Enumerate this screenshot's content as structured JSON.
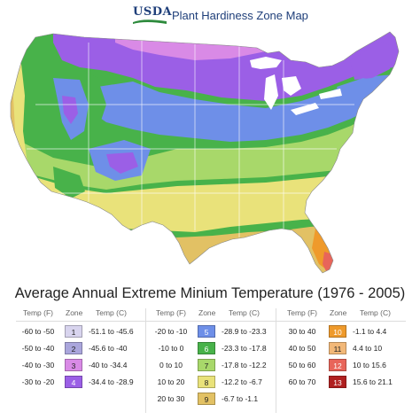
{
  "header": {
    "agency": "USDA",
    "title": "Plant Hardiness Zone Map"
  },
  "legend": {
    "title": "Average Annual Extreme Minium Temperature (1976 - 2005)",
    "head_temp_f": "Temp (F)",
    "head_zone": "Zone",
    "head_temp_c": "Temp (C)",
    "zones": [
      {
        "temp_f": "-60 to -50",
        "zone": "1",
        "temp_c": "-51.1 to -45.6",
        "color": "#d8d4ee"
      },
      {
        "temp_f": "-50 to -40",
        "zone": "2",
        "temp_c": "-45.6 to -40",
        "color": "#aaa6dc"
      },
      {
        "temp_f": "-40 to -30",
        "zone": "3",
        "temp_c": "-40 to -34.4",
        "color": "#d98ae6"
      },
      {
        "temp_f": "-30 to -20",
        "zone": "4",
        "temp_c": "-34.4 to -28.9",
        "color": "#9b5fe6"
      },
      {
        "temp_f": "-20 to -10",
        "zone": "5",
        "temp_c": "-28.9 to -23.3",
        "color": "#6e8fe8"
      },
      {
        "temp_f": "-10 to 0",
        "zone": "6",
        "temp_c": "-23.3 to -17.8",
        "color": "#48b24a"
      },
      {
        "temp_f": "0 to 10",
        "zone": "7",
        "temp_c": "-17.8 to -12.2",
        "color": "#a8d86a"
      },
      {
        "temp_f": "10 to 20",
        "zone": "8",
        "temp_c": "-12.2 to -6.7",
        "color": "#e9e27a"
      },
      {
        "temp_f": "20 to 30",
        "zone": "9",
        "temp_c": "-6.7 to -1.1",
        "color": "#e2c164"
      },
      {
        "temp_f": "30 to 40",
        "zone": "10",
        "temp_c": "-1.1 to 4.4",
        "color": "#ef9a2b"
      },
      {
        "temp_f": "40 to 50",
        "zone": "11",
        "temp_c": "4.4 to 10",
        "color": "#f2b878"
      },
      {
        "temp_f": "50 to 60",
        "zone": "12",
        "temp_c": "10 to 15.6",
        "color": "#e8655a"
      },
      {
        "temp_f": "60 to 70",
        "zone": "13",
        "temp_c": "15.6 to 21.1",
        "color": "#b02020"
      }
    ]
  },
  "colors": {
    "usda_blue": "#1f3f7a",
    "usda_green": "#2e8b3d",
    "lakes": "#ffffff",
    "border_lines": "#ffffff"
  }
}
